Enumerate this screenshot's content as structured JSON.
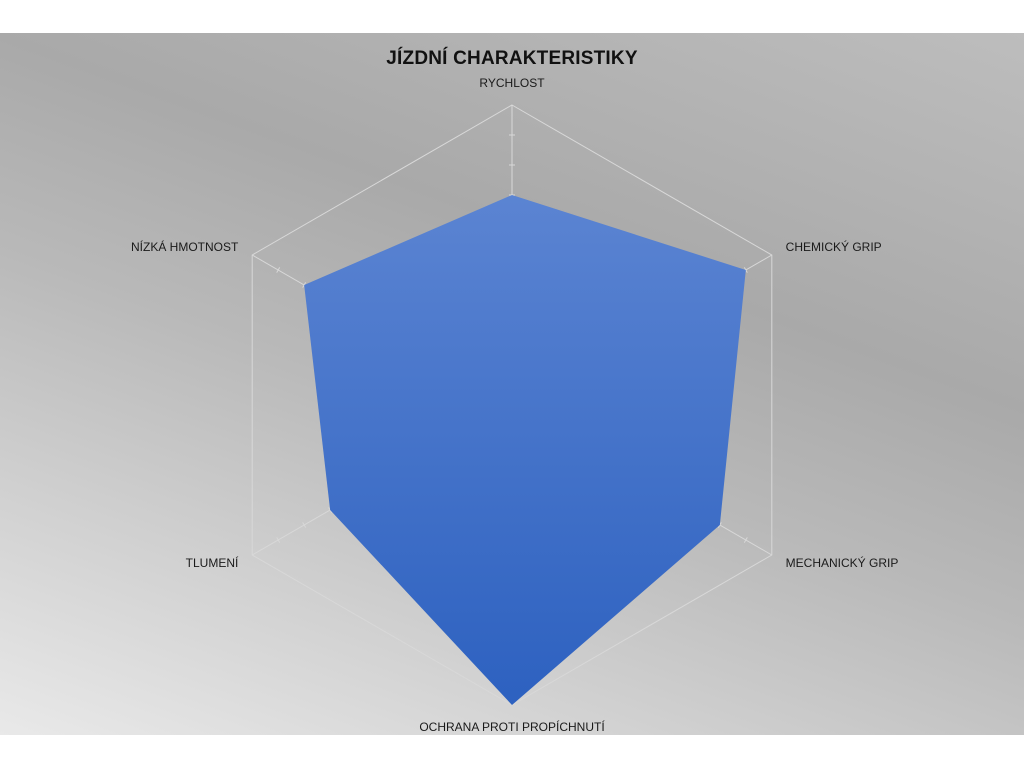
{
  "chart_data": {
    "type": "radar",
    "title": "JÍZDNÍ CHARAKTERISTIKY",
    "categories": [
      "RYCHLOST",
      "CHEMICKÝ GRIP",
      "MECHANICKÝ GRIP",
      "OCHRANA PROTI PROPÍCHNUTÍ",
      "TLUMENÍ",
      "NÍZKÁ HMOTNOST"
    ],
    "series": [
      {
        "values": [
          7,
          9,
          8,
          10,
          7,
          8
        ]
      }
    ],
    "rmax": 10,
    "grid_levels": [
      5,
      10
    ],
    "tick_step": 1,
    "legend": "none",
    "colors": {
      "fill_top": "#5b84d2",
      "fill_bottom": "#2d61c0",
      "grid": "#d8d8d8"
    }
  }
}
